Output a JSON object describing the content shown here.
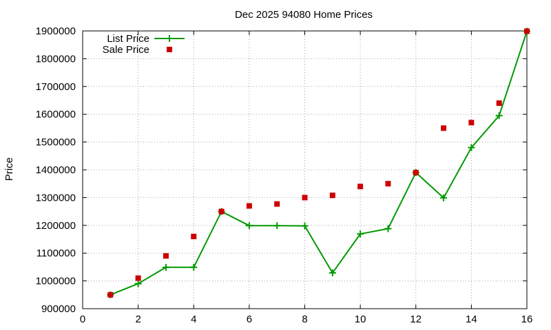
{
  "chart_data": {
    "type": "line",
    "title": "Dec 2025 94080 Home Prices",
    "xlabel": "",
    "ylabel": "Price",
    "xlim": [
      0,
      16
    ],
    "ylim": [
      900000,
      1900000
    ],
    "xticks": [
      0,
      2,
      4,
      6,
      8,
      10,
      12,
      14,
      16
    ],
    "yticks": [
      900000,
      1000000,
      1100000,
      1200000,
      1300000,
      1400000,
      1500000,
      1600000,
      1700000,
      1800000,
      1900000
    ],
    "grid": true,
    "legend_position": "top-left",
    "series": [
      {
        "name": "List Price",
        "style": "line-with-plus-markers",
        "color": "#009900",
        "x": [
          1,
          2,
          3,
          4,
          5,
          6,
          7,
          8,
          9,
          10,
          11,
          12,
          13,
          14,
          15,
          16
        ],
        "values": [
          950000,
          990000,
          1049000,
          1049000,
          1250000,
          1199000,
          1199000,
          1198000,
          1029000,
          1169000,
          1188000,
          1390000,
          1299000,
          1480000,
          1595000,
          1899000
        ]
      },
      {
        "name": "Sale Price",
        "style": "square-markers",
        "color": "#cc0000",
        "x": [
          1,
          2,
          3,
          4,
          5,
          6,
          7,
          8,
          9,
          10,
          11,
          12,
          13,
          14,
          15,
          16
        ],
        "values": [
          950000,
          1010000,
          1090000,
          1160000,
          1250000,
          1270000,
          1277000,
          1300000,
          1308000,
          1340000,
          1350000,
          1390000,
          1550000,
          1570000,
          1640000,
          1899000
        ]
      }
    ]
  }
}
